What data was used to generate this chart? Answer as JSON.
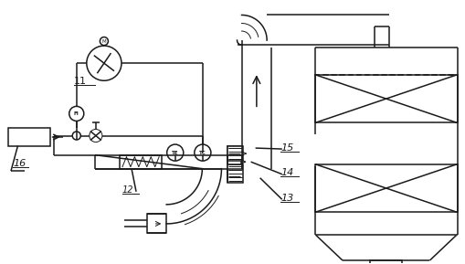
{
  "background_color": "#ffffff",
  "line_color": "#1a1a1a",
  "linewidth": 1.1,
  "thin_lw": 0.7,
  "fig_w": 5.09,
  "fig_h": 2.89,
  "dpi": 100,
  "xlim": [
    0,
    10.0
  ],
  "ylim": [
    0,
    5.7
  ]
}
